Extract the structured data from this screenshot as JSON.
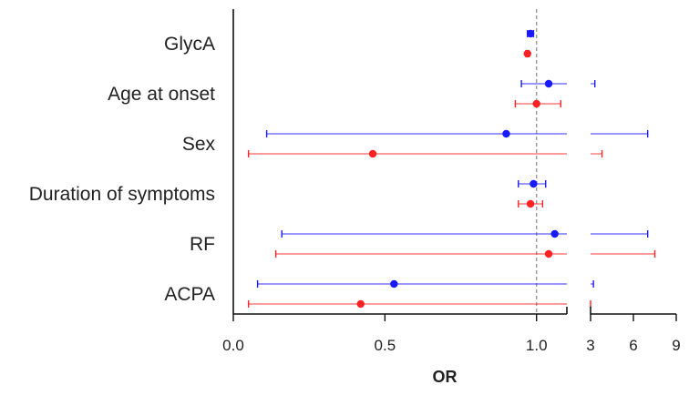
{
  "chart_data": {
    "type": "forest",
    "xlabel": "OR",
    "reference_line": 1.0,
    "categories": [
      "GlycA",
      "Age at onset",
      "Sex",
      "Duration of symptoms",
      "RF",
      "ACPA"
    ],
    "axis": {
      "segments": [
        {
          "range": [
            0,
            1.1
          ],
          "ticks": [
            0.0,
            0.5,
            1.0
          ],
          "tick_labels": [
            "0.0",
            "0.5",
            "1.0"
          ]
        },
        {
          "range": [
            3,
            9
          ],
          "ticks": [
            3,
            6,
            9
          ],
          "tick_labels": [
            "3",
            "6",
            "9"
          ]
        }
      ]
    },
    "series": [
      {
        "color": "#1a1aff",
        "points": [
          {
            "category": "GlycA",
            "or": 0.98,
            "lower": 0.97,
            "upper": 0.99
          },
          {
            "category": "Age at onset",
            "or": 1.04,
            "lower": 0.95,
            "upper": 3.3
          },
          {
            "category": "Sex",
            "or": 0.9,
            "lower": 0.11,
            "upper": 7.0
          },
          {
            "category": "Duration of symptoms",
            "or": 0.99,
            "lower": 0.94,
            "upper": 1.03
          },
          {
            "category": "RF",
            "or": 1.06,
            "lower": 0.16,
            "upper": 7.0
          },
          {
            "category": "ACPA",
            "or": 0.53,
            "lower": 0.08,
            "upper": 3.2
          }
        ]
      },
      {
        "color": "#ff2222",
        "points": [
          {
            "category": "GlycA",
            "or": 0.97,
            "lower": 0.965,
            "upper": 0.975
          },
          {
            "category": "Age at onset",
            "or": 1.0,
            "lower": 0.93,
            "upper": 1.08
          },
          {
            "category": "Sex",
            "or": 0.46,
            "lower": 0.05,
            "upper": 3.8
          },
          {
            "category": "Duration of symptoms",
            "or": 0.98,
            "lower": 0.94,
            "upper": 1.02
          },
          {
            "category": "RF",
            "or": 1.04,
            "lower": 0.14,
            "upper": 7.5
          },
          {
            "category": "ACPA",
            "or": 0.42,
            "lower": 0.05,
            "upper": 3.0
          }
        ]
      }
    ]
  }
}
